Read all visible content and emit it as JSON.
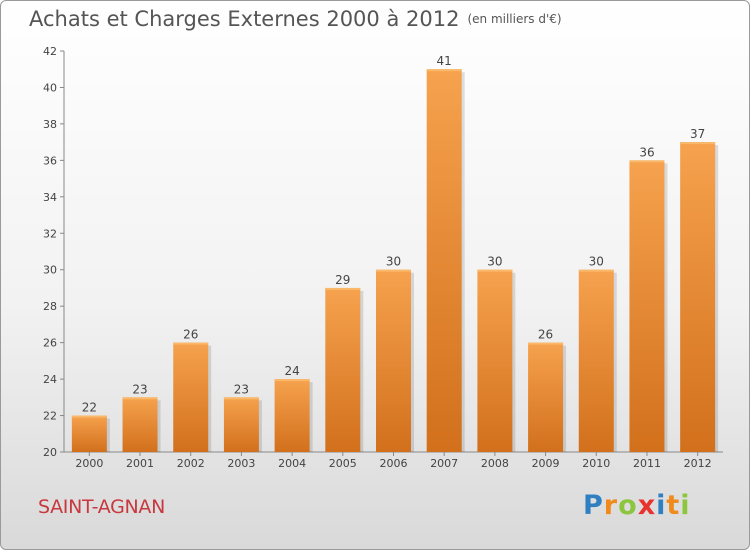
{
  "header": {
    "title": "Achats et Charges Externes 2000 à 2012",
    "unit": "(en milliers d'€)"
  },
  "town": "SAINT-AGNAN",
  "brand": {
    "name": "Proxiti",
    "letters": [
      {
        "ch": "P",
        "color": "#2f7fc1"
      },
      {
        "ch": "r",
        "color": "#f08a1c"
      },
      {
        "ch": "o",
        "color": "#8cc63f"
      },
      {
        "ch": "x",
        "color": "#e8322e"
      },
      {
        "ch": "i",
        "color": "#2f7fc1"
      },
      {
        "ch": "t",
        "color": "#f08a1c"
      },
      {
        "ch": "i",
        "color": "#8cc63f"
      }
    ]
  },
  "chart_data": {
    "type": "bar",
    "categories": [
      "2000",
      "2001",
      "2002",
      "2003",
      "2004",
      "2005",
      "2006",
      "2007",
      "2008",
      "2009",
      "2010",
      "2011",
      "2012"
    ],
    "values": [
      22,
      23,
      26,
      23,
      24,
      29,
      30,
      41,
      30,
      26,
      30,
      36,
      37
    ],
    "ylim": [
      20,
      42
    ],
    "yticks": [
      20,
      22,
      24,
      26,
      28,
      30,
      32,
      34,
      36,
      38,
      40,
      42
    ],
    "grid": false,
    "data_labels": true,
    "bar_color_top": "#f6a24e",
    "bar_color_bottom": "#d2701c"
  }
}
